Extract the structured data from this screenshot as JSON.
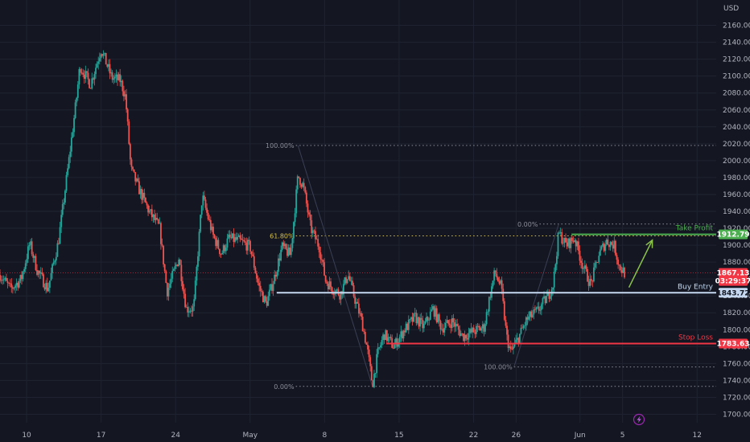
{
  "chart_data": {
    "type": "candlestick",
    "currency": "USD",
    "ylim": [
      1690,
      2190
    ],
    "price_ticks": [
      1700,
      1720,
      1740,
      1760,
      1780,
      1800,
      1820,
      1840,
      1860,
      1880,
      1900,
      1920,
      1940,
      1960,
      1980,
      2000,
      2020,
      2040,
      2060,
      2080,
      2100,
      2120,
      2140,
      2160
    ],
    "x_ticks": [
      {
        "label": "10",
        "t": 10
      },
      {
        "label": "17",
        "t": 17
      },
      {
        "label": "24",
        "t": 24
      },
      {
        "label": "May",
        "t": 31
      },
      {
        "label": "8",
        "t": 38
      },
      {
        "label": "15",
        "t": 45
      },
      {
        "label": "22",
        "t": 52
      },
      {
        "label": "26",
        "t": 56
      },
      {
        "label": "Jun",
        "t": 62
      },
      {
        "label": "5",
        "t": 66
      },
      {
        "label": "12",
        "t": 73
      }
    ],
    "x_range": [
      7.5,
      74.8
    ],
    "path": [
      [
        7.5,
        1865
      ],
      [
        8.5,
        1848
      ],
      [
        9.5,
        1860
      ],
      [
        10.3,
        1902
      ],
      [
        11,
        1870
      ],
      [
        12,
        1848
      ],
      [
        13,
        1905
      ],
      [
        14,
        2003
      ],
      [
        14.7,
        2075
      ],
      [
        15,
        2112
      ],
      [
        16,
        2090
      ],
      [
        17,
        2132
      ],
      [
        18,
        2098
      ],
      [
        18.8,
        2095
      ],
      [
        19.3,
        2075
      ],
      [
        19.8,
        1990
      ],
      [
        20.6,
        1965
      ],
      [
        21.5,
        1940
      ],
      [
        22.5,
        1920
      ],
      [
        23.2,
        1845
      ],
      [
        24.3,
        1885
      ],
      [
        25,
        1825
      ],
      [
        25.7,
        1825
      ],
      [
        26.5,
        1958
      ],
      [
        27.5,
        1912
      ],
      [
        28.3,
        1890
      ],
      [
        29,
        1908
      ],
      [
        30,
        1905
      ],
      [
        31,
        1898
      ],
      [
        31.8,
        1852
      ],
      [
        32.5,
        1830
      ],
      [
        33.3,
        1862
      ],
      [
        34,
        1898
      ],
      [
        34.8,
        1888
      ],
      [
        35.5,
        1982
      ],
      [
        36,
        1970
      ],
      [
        36.7,
        1920
      ],
      [
        37.5,
        1898
      ],
      [
        38.1,
        1858
      ],
      [
        38.8,
        1848
      ],
      [
        39.5,
        1842
      ],
      [
        40.2,
        1866
      ],
      [
        40.8,
        1838
      ],
      [
        41.5,
        1810
      ],
      [
        42,
        1778
      ],
      [
        42.5,
        1735
      ],
      [
        43,
        1772
      ],
      [
        43.6,
        1795
      ],
      [
        44.5,
        1780
      ],
      [
        45.5,
        1800
      ],
      [
        46.5,
        1815
      ],
      [
        47.3,
        1803
      ],
      [
        48.2,
        1825
      ],
      [
        49,
        1802
      ],
      [
        50,
        1810
      ],
      [
        51,
        1792
      ],
      [
        52,
        1798
      ],
      [
        53,
        1803
      ],
      [
        53.5,
        1838
      ],
      [
        54,
        1868
      ],
      [
        54.6,
        1850
      ],
      [
        55.1,
        1792
      ],
      [
        55.5,
        1773
      ],
      [
        56.2,
        1790
      ],
      [
        57,
        1812
      ],
      [
        58,
        1822
      ],
      [
        59,
        1840
      ],
      [
        59.5,
        1855
      ],
      [
        60,
        1915
      ],
      [
        60.7,
        1900
      ],
      [
        61.5,
        1908
      ],
      [
        62.2,
        1878
      ],
      [
        63,
        1853
      ],
      [
        63.8,
        1890
      ],
      [
        64.5,
        1905
      ],
      [
        65.2,
        1900
      ],
      [
        65.7,
        1875
      ],
      [
        66.2,
        1867
      ]
    ],
    "annotations": {
      "take_profit": {
        "label": "Take Profit",
        "price": 1912.79,
        "tag": "1912.79",
        "x_start": 61.2
      },
      "buy_entry": {
        "label": "Buy Entry",
        "price": 1843.72,
        "tag": "1843.72",
        "x_start": 33.5
      },
      "stop_loss": {
        "label": "Stop Loss",
        "price": 1783.63,
        "tag": "1783.63",
        "x_start": 43.8
      },
      "current_price": {
        "price": 1867.13,
        "tag": "1867.13",
        "timer": "03:29:37"
      },
      "fib_levels": [
        {
          "label": "100.00%",
          "price": 2018,
          "x_start": 35.3,
          "x_end": 74.8
        },
        {
          "label": "61.80%",
          "price": 1911,
          "x_start": 35.3,
          "x_end": 74.8
        },
        {
          "label": "0.00%",
          "price": 1733,
          "x_start": 35.3,
          "x_end": 74.8
        },
        {
          "label": "0.00%",
          "price": 1925,
          "x_start": 58.2,
          "x_end": 74.8
        },
        {
          "label": "100.00%",
          "price": 1756,
          "x_start": 55.8,
          "x_end": 74.8
        }
      ],
      "arrow": {
        "x1": 66.6,
        "y1": 1850,
        "x2": 68.8,
        "y2": 1906
      }
    },
    "colors": {
      "bull": "#26a69a",
      "bear": "#ef5350",
      "take_profit": "#4caf50",
      "buy_entry": "#c5d8f0",
      "stop_loss": "#f23645",
      "fib_gold": "#d8c24a",
      "fib_grey": "#8c8f99",
      "arrow": "#8bc34a",
      "current": "#f23645"
    }
  }
}
